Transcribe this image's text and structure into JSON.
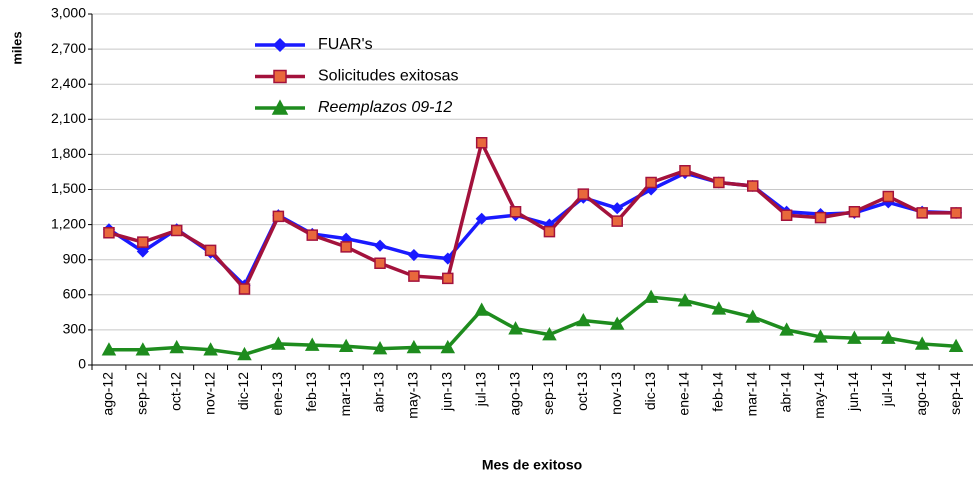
{
  "chart_data": {
    "type": "line",
    "y_label": "miles",
    "x_label": "Mes de exitoso",
    "categories": [
      "ago-12",
      "sep-12",
      "oct-12",
      "nov-12",
      "dic-12",
      "ene-13",
      "feb-13",
      "mar-13",
      "abr-13",
      "may-13",
      "jun-13",
      "jul-13",
      "ago-13",
      "sep-13",
      "oct-13",
      "nov-13",
      "dic-13",
      "ene-14",
      "feb-14",
      "mar-14",
      "abr-14",
      "may-14",
      "jun-14",
      "jul-14",
      "ago-14",
      "sep-14"
    ],
    "series": [
      {
        "name": "FUAR's",
        "color": "#1a1aff",
        "marker": "diamond",
        "marker_fill": "#1a1aff",
        "values": [
          1160,
          970,
          1160,
          960,
          680,
          1280,
          1120,
          1080,
          1020,
          940,
          910,
          1250,
          1280,
          1200,
          1430,
          1340,
          1500,
          1640,
          1560,
          1530,
          1310,
          1290,
          1300,
          1390,
          1310,
          1300
        ]
      },
      {
        "name": "Solicitudes exitosas",
        "color": "#a3123c",
        "marker": "square",
        "marker_fill": "#e8683c",
        "values": [
          1130,
          1050,
          1150,
          980,
          650,
          1270,
          1110,
          1010,
          870,
          760,
          740,
          1900,
          1310,
          1140,
          1460,
          1230,
          1560,
          1660,
          1560,
          1530,
          1280,
          1260,
          1310,
          1440,
          1300,
          1300
        ]
      },
      {
        "name": "Reemplazos 09-12",
        "color": "#1e8c1e",
        "marker": "triangle",
        "marker_fill": "#1e8c1e",
        "values": [
          130,
          130,
          150,
          130,
          90,
          180,
          170,
          160,
          140,
          150,
          150,
          470,
          310,
          260,
          380,
          350,
          580,
          550,
          480,
          410,
          300,
          240,
          230,
          230,
          180,
          160
        ]
      }
    ],
    "ylim": [
      0,
      3000
    ],
    "yticks": [
      0,
      300,
      600,
      900,
      {
        "value": 1200,
        "label": "1,200"
      },
      {
        "value": 1500,
        "label": "1,500"
      },
      {
        "value": 1800,
        "label": "1,800"
      },
      {
        "value": 2100,
        "label": "2,100"
      },
      {
        "value": 2400,
        "label": "2,400"
      },
      {
        "value": 2700,
        "label": "2,700"
      },
      {
        "value": 3000,
        "label": "3,000"
      }
    ],
    "grid": true
  }
}
